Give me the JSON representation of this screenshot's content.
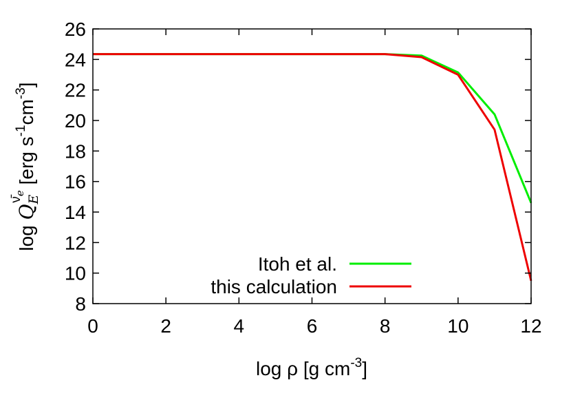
{
  "chart_data": {
    "type": "line",
    "xlabel": "log ρ [g cm",
    "xlabel_sup": "-3",
    "xlabel_end": "]",
    "ylabel_parts": {
      "prefix": "log ",
      "q": "Q",
      "sub": "E",
      "sup": "ν̄",
      "sup_sub": "e",
      "unit_a": " [erg s",
      "unit_sup1": "-1",
      "unit_b": "cm",
      "unit_sup2": "-3",
      "unit_c": "]"
    },
    "xlim": [
      0,
      12
    ],
    "ylim": [
      8,
      26
    ],
    "xticks": [
      0,
      2,
      4,
      6,
      8,
      10,
      12
    ],
    "yticks": [
      8,
      10,
      12,
      14,
      16,
      18,
      20,
      22,
      24,
      26
    ],
    "grid": false,
    "legend_position": "bottom-right",
    "series": [
      {
        "name": "Itoh et al.",
        "color": "#00ee00",
        "x": [
          0,
          1,
          2,
          3,
          4,
          5,
          6,
          7,
          8,
          9,
          10,
          11,
          12
        ],
        "y": [
          24.35,
          24.35,
          24.35,
          24.35,
          24.35,
          24.35,
          24.35,
          24.35,
          24.35,
          24.25,
          23.15,
          20.4,
          14.6
        ]
      },
      {
        "name": "this calculation",
        "color": "#ee0000",
        "x": [
          0,
          1,
          2,
          3,
          4,
          5,
          6,
          7,
          8,
          9,
          10,
          11,
          12
        ],
        "y": [
          24.35,
          24.35,
          24.35,
          24.35,
          24.35,
          24.35,
          24.35,
          24.35,
          24.35,
          24.15,
          23.0,
          19.4,
          9.5
        ]
      }
    ]
  }
}
